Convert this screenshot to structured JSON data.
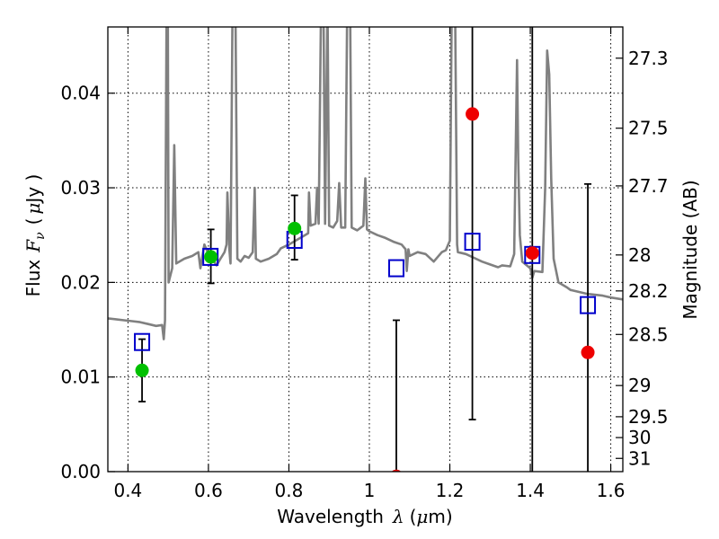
{
  "chart_data": {
    "type": "scatter",
    "xlabel_prefix": "Wavelength",
    "xlabel_symbol": "λ",
    "xlabel_unit_open": "(",
    "xlabel_unit_mu": "μ",
    "xlabel_unit_rest": "m)",
    "ylabel_prefix": "Flux",
    "ylabel_symbol": "F",
    "ylabel_subscript": "ν",
    "ylabel_unit_open": "(",
    "ylabel_unit_mu": "μ",
    "ylabel_unit_rest": "Jy )",
    "y2label": "Magnitude (AB)",
    "xlim": [
      0.35,
      1.63
    ],
    "ylim": [
      0.0,
      0.047
    ],
    "grid": true,
    "x_ticks": [
      {
        "value": 0.4,
        "label": "0.4"
      },
      {
        "value": 0.6,
        "label": "0.6"
      },
      {
        "value": 0.8,
        "label": "0.8"
      },
      {
        "value": 1.0,
        "label": "1"
      },
      {
        "value": 1.2,
        "label": "1.2"
      },
      {
        "value": 1.4,
        "label": "1.4"
      },
      {
        "value": 1.6,
        "label": "1.6"
      }
    ],
    "y_ticks": [
      {
        "value": 0.0,
        "label": "0.00"
      },
      {
        "value": 0.01,
        "label": "0.01"
      },
      {
        "value": 0.02,
        "label": "0.02"
      },
      {
        "value": 0.03,
        "label": "0.03"
      },
      {
        "value": 0.04,
        "label": "0.04"
      }
    ],
    "mag_ticks": [
      {
        "flux": 0.0437,
        "label": "27.3"
      },
      {
        "flux": 0.0363,
        "label": "27.5"
      },
      {
        "flux": 0.0302,
        "label": "27.7"
      },
      {
        "flux": 0.0229,
        "label": "28"
      },
      {
        "flux": 0.0191,
        "label": "28.2"
      },
      {
        "flux": 0.0145,
        "label": "28.5"
      },
      {
        "flux": 0.0091,
        "label": "29"
      },
      {
        "flux": 0.0058,
        "label": "29.5"
      },
      {
        "flux": 0.0036,
        "label": "30"
      },
      {
        "flux": 0.0014,
        "label": "31"
      }
    ],
    "series": [
      {
        "kind": "model_spectrum",
        "color": "#808080",
        "points": [
          [
            0.35,
            0.0162
          ],
          [
            0.37,
            0.0161
          ],
          [
            0.39,
            0.016
          ],
          [
            0.41,
            0.0159
          ],
          [
            0.43,
            0.0158
          ],
          [
            0.45,
            0.0156
          ],
          [
            0.47,
            0.0154
          ],
          [
            0.485,
            0.0155
          ],
          [
            0.489,
            0.014
          ],
          [
            0.492,
            0.016
          ],
          [
            0.496,
            0.05
          ],
          [
            0.499,
            0.05
          ],
          [
            0.501,
            0.02
          ],
          [
            0.51,
            0.0215
          ],
          [
            0.515,
            0.0345
          ],
          [
            0.52,
            0.022
          ],
          [
            0.54,
            0.0225
          ],
          [
            0.56,
            0.0228
          ],
          [
            0.575,
            0.0232
          ],
          [
            0.58,
            0.0215
          ],
          [
            0.59,
            0.024
          ],
          [
            0.6,
            0.023
          ],
          [
            0.61,
            0.0225
          ],
          [
            0.62,
            0.0218
          ],
          [
            0.63,
            0.0225
          ],
          [
            0.64,
            0.0232
          ],
          [
            0.645,
            0.024
          ],
          [
            0.647,
            0.0295
          ],
          [
            0.652,
            0.0235
          ],
          [
            0.655,
            0.022
          ],
          [
            0.66,
            0.05
          ],
          [
            0.667,
            0.05
          ],
          [
            0.672,
            0.0225
          ],
          [
            0.68,
            0.0222
          ],
          [
            0.69,
            0.0228
          ],
          [
            0.7,
            0.0226
          ],
          [
            0.71,
            0.0232
          ],
          [
            0.715,
            0.03
          ],
          [
            0.718,
            0.0225
          ],
          [
            0.73,
            0.0222
          ],
          [
            0.75,
            0.0225
          ],
          [
            0.77,
            0.023
          ],
          [
            0.78,
            0.0236
          ],
          [
            0.79,
            0.0238
          ],
          [
            0.8,
            0.024
          ],
          [
            0.82,
            0.0245
          ],
          [
            0.84,
            0.025
          ],
          [
            0.848,
            0.0252
          ],
          [
            0.85,
            0.0295
          ],
          [
            0.854,
            0.026
          ],
          [
            0.866,
            0.0262
          ],
          [
            0.87,
            0.03
          ],
          [
            0.874,
            0.0262
          ],
          [
            0.88,
            0.05
          ],
          [
            0.886,
            0.05
          ],
          [
            0.89,
            0.0262
          ],
          [
            0.896,
            0.05
          ],
          [
            0.9,
            0.026
          ],
          [
            0.91,
            0.0258
          ],
          [
            0.92,
            0.0265
          ],
          [
            0.925,
            0.0305
          ],
          [
            0.93,
            0.0258
          ],
          [
            0.94,
            0.0258
          ],
          [
            0.945,
            0.05
          ],
          [
            0.952,
            0.05
          ],
          [
            0.956,
            0.0258
          ],
          [
            0.97,
            0.0255
          ],
          [
            0.985,
            0.026
          ],
          [
            0.99,
            0.031
          ],
          [
            0.994,
            0.0256
          ],
          [
            1.0,
            0.0254
          ],
          [
            1.02,
            0.025
          ],
          [
            1.04,
            0.0247
          ],
          [
            1.06,
            0.0243
          ],
          [
            1.08,
            0.024
          ],
          [
            1.09,
            0.0235
          ],
          [
            1.093,
            0.0212
          ],
          [
            1.097,
            0.0235
          ],
          [
            1.1,
            0.0228
          ],
          [
            1.12,
            0.0232
          ],
          [
            1.14,
            0.023
          ],
          [
            1.16,
            0.0222
          ],
          [
            1.18,
            0.0232
          ],
          [
            1.19,
            0.0234
          ],
          [
            1.2,
            0.0244
          ],
          [
            1.205,
            0.05
          ],
          [
            1.213,
            0.05
          ],
          [
            1.218,
            0.024
          ],
          [
            1.22,
            0.0232
          ],
          [
            1.24,
            0.023
          ],
          [
            1.26,
            0.0226
          ],
          [
            1.28,
            0.0222
          ],
          [
            1.3,
            0.0219
          ],
          [
            1.32,
            0.0216
          ],
          [
            1.33,
            0.0218
          ],
          [
            1.35,
            0.0217
          ],
          [
            1.36,
            0.023
          ],
          [
            1.363,
            0.032
          ],
          [
            1.367,
            0.0435
          ],
          [
            1.37,
            0.033
          ],
          [
            1.374,
            0.025
          ],
          [
            1.38,
            0.0222
          ],
          [
            1.4,
            0.0215
          ],
          [
            1.405,
            0.0205
          ],
          [
            1.41,
            0.0212
          ],
          [
            1.43,
            0.0211
          ],
          [
            1.437,
            0.03
          ],
          [
            1.442,
            0.0445
          ],
          [
            1.447,
            0.042
          ],
          [
            1.452,
            0.031
          ],
          [
            1.458,
            0.0225
          ],
          [
            1.47,
            0.02
          ],
          [
            1.49,
            0.0195
          ],
          [
            1.5,
            0.0192
          ],
          [
            1.52,
            0.019
          ],
          [
            1.54,
            0.0188
          ],
          [
            1.56,
            0.0187
          ],
          [
            1.58,
            0.0186
          ],
          [
            1.6,
            0.0184
          ],
          [
            1.63,
            0.0182
          ]
        ]
      },
      {
        "kind": "model_bandpass_flux",
        "marker": "open-square",
        "color": "#0000cc",
        "points": [
          [
            0.435,
            0.0137
          ],
          [
            0.605,
            0.0227
          ],
          [
            0.814,
            0.0245
          ],
          [
            1.067,
            0.0215
          ],
          [
            1.256,
            0.0243
          ],
          [
            1.405,
            0.0229
          ],
          [
            1.543,
            0.0176
          ]
        ]
      },
      {
        "kind": "observed_detection",
        "marker": "filled-circle",
        "color": "#00c000",
        "points": [
          [
            0.435,
            0.0107
          ],
          [
            0.606,
            0.0227
          ],
          [
            0.814,
            0.0257
          ]
        ],
        "errors": [
          [
            0.0074,
            0.014
          ],
          [
            0.0199,
            0.0256
          ],
          [
            0.0224,
            0.0292
          ]
        ]
      },
      {
        "kind": "observed_nir",
        "marker": "filled-circle",
        "color": "#ee0000",
        "points": [
          [
            1.067,
            -0.0005
          ],
          [
            1.256,
            0.0378
          ],
          [
            1.405,
            0.0231
          ],
          [
            1.543,
            0.0126
          ]
        ],
        "errors": [
          [
            -0.0005,
            0.016
          ],
          [
            0.0055,
            0.05
          ],
          [
            -0.0005,
            0.05
          ],
          [
            -0.0005,
            0.0304
          ]
        ]
      }
    ]
  }
}
